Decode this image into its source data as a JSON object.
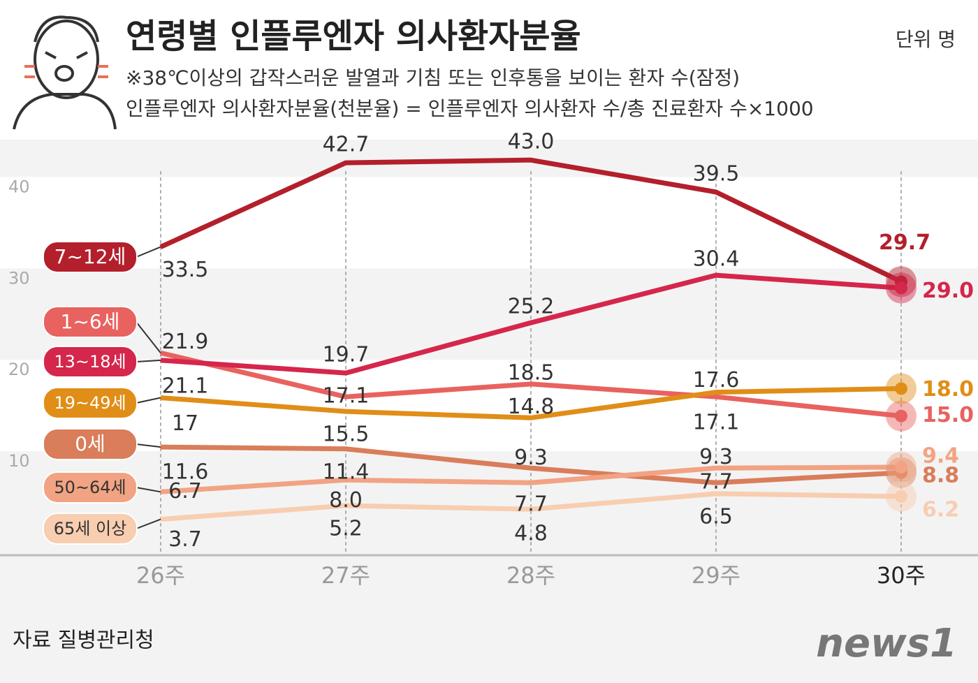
{
  "chart_data": {
    "type": "line",
    "title": "연령별 인플루엔자 의사환자분율",
    "unit": "단위 명",
    "subtitle": [
      "※38℃이상의 갑작스러운 발열과 기침 또는 인후통을 보이는 환자 수(잠정)",
      "인플루엔자 의사환자분율(천분율) = 인플루엔자 의사환자 수/총 진료환자 수×1000"
    ],
    "source": "자료 질병관리청",
    "logo": "news1",
    "categories": [
      "26주",
      "27주",
      "28주",
      "29주",
      "30주"
    ],
    "ylim": [
      0,
      45
    ],
    "yticks": [
      10,
      20,
      30,
      40
    ],
    "series": [
      {
        "name": "7~12세",
        "color": "#b31f2b",
        "values": [
          33.5,
          42.7,
          43.0,
          39.5,
          29.7
        ],
        "value_labels": [
          "33.5",
          "42.7",
          "43.0",
          "39.5",
          "29.7"
        ]
      },
      {
        "name": "1~6세",
        "color": "#e8625f",
        "values": [
          21.9,
          17.1,
          18.5,
          17.1,
          15.0
        ],
        "value_labels": [
          "21.9",
          "17.1",
          "18.5",
          "17.1",
          "15.0"
        ]
      },
      {
        "name": "13~18세",
        "color": "#d5264b",
        "values": [
          21.1,
          19.7,
          25.2,
          30.4,
          29.0
        ],
        "value_labels": [
          "21.1",
          "19.7",
          "25.2",
          "30.4",
          "29.0"
        ]
      },
      {
        "name": "19~49세",
        "color": "#e08e17",
        "values": [
          17,
          15.5,
          14.8,
          17.6,
          18.0
        ],
        "value_labels": [
          "17",
          "15.5",
          "14.8",
          "17.6",
          "18.0"
        ]
      },
      {
        "name": "0세",
        "color": "#d97d5a",
        "values": [
          11.6,
          11.4,
          9.3,
          7.7,
          8.8
        ],
        "value_labels": [
          "11.6",
          "11.4",
          "9.3",
          "7.7",
          "8.8"
        ]
      },
      {
        "name": "50~64세",
        "color": "#f2a383",
        "values": [
          6.7,
          8.0,
          7.7,
          9.3,
          9.4
        ],
        "value_labels": [
          "6.7",
          "8.0",
          "7.7",
          "9.3",
          "9.4"
        ]
      },
      {
        "name": "65세 이상",
        "color": "#f8cdb0",
        "values": [
          3.7,
          5.2,
          4.8,
          6.5,
          6.2
        ],
        "value_labels": [
          "3.7",
          "5.2",
          "4.8",
          "6.5",
          "6.2"
        ]
      }
    ]
  }
}
